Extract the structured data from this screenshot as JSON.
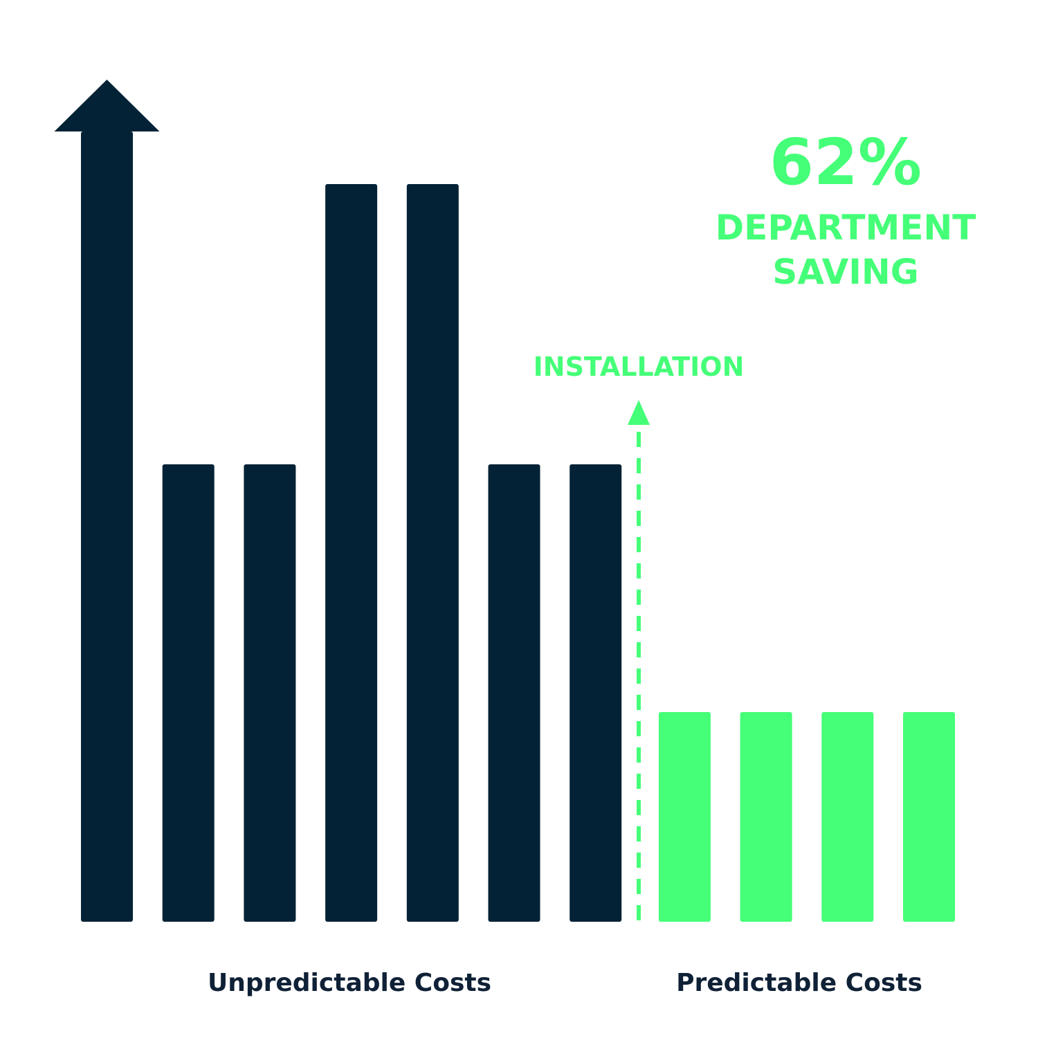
{
  "chart_data": {
    "type": "bar",
    "title": "",
    "xlabel": "",
    "ylabel": "",
    "ylim": [
      0,
      10
    ],
    "grid": false,
    "legend": "none",
    "series": [
      {
        "values": [
          10,
          6,
          6,
          9,
          9,
          6,
          6,
          0,
          0,
          0,
          0
        ],
        "color": "#032235"
      },
      {
        "values": [
          0,
          0,
          0,
          0,
          0,
          0,
          0,
          2.8,
          2.8,
          2.8,
          2.8
        ],
        "color": "#44FF77"
      }
    ],
    "rising_arrow_on_bar": 0,
    "group_labels": [
      "Unpredictable Costs",
      "Predictable Costs"
    ],
    "annotations": {
      "event_label": "INSTALLATION",
      "event_between_bars": [
        6,
        7
      ],
      "stat_value": "62%",
      "stat_line1": "DEPARTMENT",
      "stat_line2": "SAVING"
    }
  },
  "colors": {
    "dark": "#032235",
    "green": "#44FF77",
    "text_dark": "#0F2136"
  }
}
